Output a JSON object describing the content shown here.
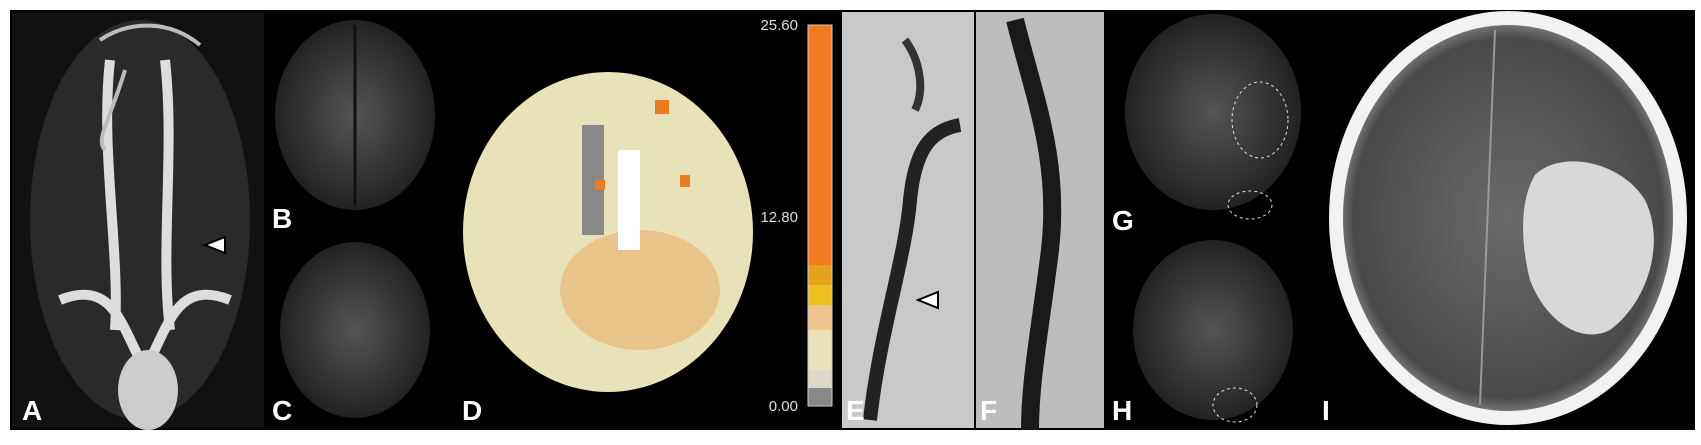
{
  "panels": [
    {
      "label": "A"
    },
    {
      "label": "B"
    },
    {
      "label": "C"
    },
    {
      "label": "D"
    },
    {
      "label": "E"
    },
    {
      "label": "F"
    },
    {
      "label": "G"
    },
    {
      "label": "H"
    },
    {
      "label": "I"
    }
  ],
  "colorbar": {
    "ticks": [
      "25.60",
      "12.80",
      "0.00"
    ]
  }
}
